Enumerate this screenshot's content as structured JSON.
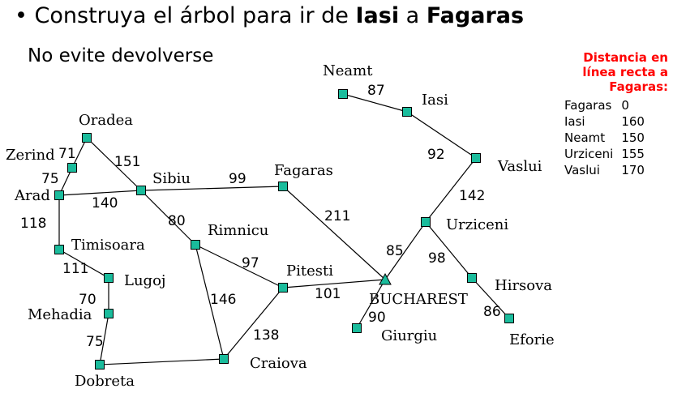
{
  "title": {
    "prefix": "Construya el árbol para ir de ",
    "from": "Iasi",
    "middle": " a ",
    "to": "Fagaras"
  },
  "subtitle": "No evite devolverse",
  "legend": {
    "title": "Distancia en línea recta a Fagaras:",
    "rows": [
      {
        "city": "Fagaras",
        "value": "0"
      },
      {
        "city": "Iasi",
        "value": "160"
      },
      {
        "city": "Neamt",
        "value": "150"
      },
      {
        "city": "Urziceni",
        "value": "155"
      },
      {
        "city": "Vaslui",
        "value": "170"
      }
    ]
  },
  "colors": {
    "node": "#1abc9c",
    "legend_title": "#ff0000"
  },
  "cities": [
    "Arad",
    "Zerind",
    "Oradea",
    "Sibiu",
    "Timisoara",
    "Lugoj",
    "Mehadia",
    "Dobreta",
    "Rimnicu",
    "Fagaras",
    "Pitesti",
    "Craiova",
    "BUCHAREST",
    "Giurgiu",
    "Urziceni",
    "Hirsova",
    "Eforie",
    "Vaslui",
    "Iasi",
    "Neamt"
  ],
  "roads": [
    {
      "from": "Arad",
      "to": "Zerind",
      "distance": "75"
    },
    {
      "from": "Zerind",
      "to": "Oradea",
      "distance": "71"
    },
    {
      "from": "Oradea",
      "to": "Sibiu",
      "distance": "151"
    },
    {
      "from": "Arad",
      "to": "Sibiu",
      "distance": "140"
    },
    {
      "from": "Arad",
      "to": "Timisoara",
      "distance": "118"
    },
    {
      "from": "Timisoara",
      "to": "Lugoj",
      "distance": "111"
    },
    {
      "from": "Lugoj",
      "to": "Mehadia",
      "distance": "70"
    },
    {
      "from": "Mehadia",
      "to": "Dobreta",
      "distance": "75"
    },
    {
      "from": "Dobreta",
      "to": "Craiova",
      "distance": ""
    },
    {
      "from": "Sibiu",
      "to": "Fagaras",
      "distance": "99"
    },
    {
      "from": "Sibiu",
      "to": "Rimnicu",
      "distance": "80"
    },
    {
      "from": "Rimnicu",
      "to": "Pitesti",
      "distance": "97"
    },
    {
      "from": "Rimnicu",
      "to": "Craiova",
      "distance": "146"
    },
    {
      "from": "Pitesti",
      "to": "Craiova",
      "distance": "138"
    },
    {
      "from": "Pitesti",
      "to": "BUCHAREST",
      "distance": "101"
    },
    {
      "from": "Fagaras",
      "to": "BUCHAREST",
      "distance": "211"
    },
    {
      "from": "BUCHAREST",
      "to": "Giurgiu",
      "distance": "90"
    },
    {
      "from": "BUCHAREST",
      "to": "Urziceni",
      "distance": "85"
    },
    {
      "from": "Urziceni",
      "to": "Hirsova",
      "distance": "98"
    },
    {
      "from": "Hirsova",
      "to": "Eforie",
      "distance": "86"
    },
    {
      "from": "Urziceni",
      "to": "Vaslui",
      "distance": "142"
    },
    {
      "from": "Vaslui",
      "to": "Iasi",
      "distance": "92"
    },
    {
      "from": "Iasi",
      "to": "Neamt",
      "distance": "87"
    }
  ]
}
